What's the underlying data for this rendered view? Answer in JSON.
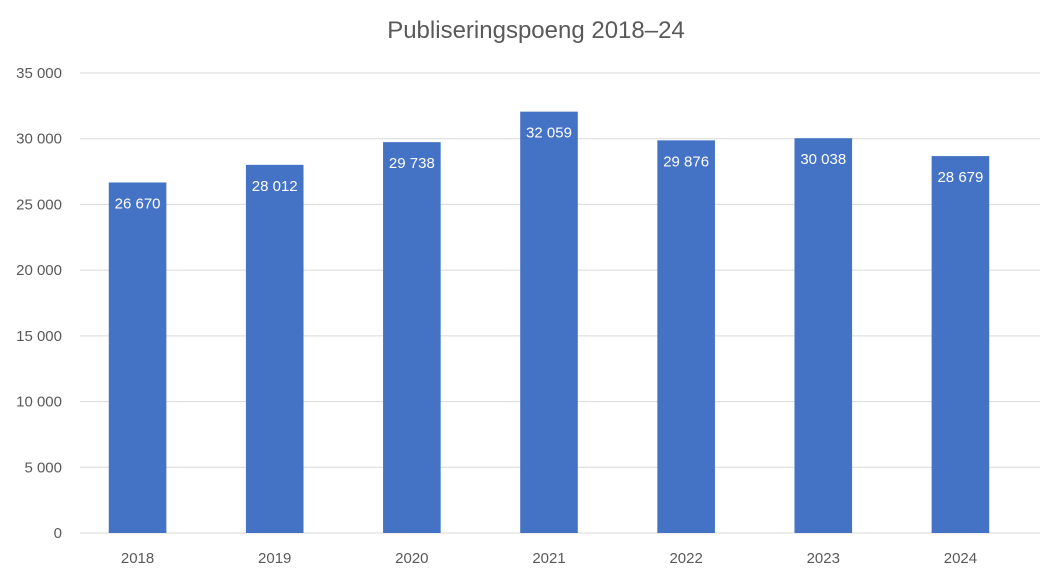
{
  "chart_data": {
    "type": "bar",
    "title": "Publiseringspoeng 2018–24",
    "categories": [
      "2018",
      "2019",
      "2020",
      "2021",
      "2022",
      "2023",
      "2024"
    ],
    "values": [
      26670,
      28012,
      29738,
      32059,
      29876,
      30038,
      28679
    ],
    "data_labels": [
      "26 670",
      "28 012",
      "29 738",
      "32 059",
      "29 876",
      "30 038",
      "28 679"
    ],
    "y_ticks": [
      0,
      5000,
      10000,
      15000,
      20000,
      25000,
      30000,
      35000
    ],
    "y_tick_labels": [
      "0",
      "5 000",
      "10 000",
      "15 000",
      "20 000",
      "25 000",
      "30 000",
      "35 000"
    ],
    "ylim": [
      0,
      35000
    ],
    "xlabel": "",
    "ylabel": "",
    "grid": true,
    "legend": "none",
    "bar_color": "#4472C4",
    "grid_color": "#D9D9D9",
    "text_color": "#595959",
    "label_color": "#FFFFFF"
  }
}
